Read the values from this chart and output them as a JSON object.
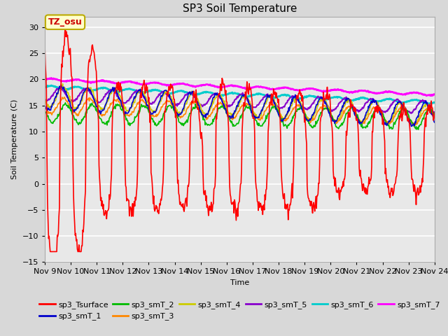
{
  "title": "SP3 Soil Temperature",
  "xlabel": "Time",
  "ylabel": "Soil Temperature (C)",
  "ylim": [
    -15,
    32
  ],
  "xlim": [
    0,
    360
  ],
  "x_tick_labels": [
    "Nov 9",
    "Nov 10",
    "Nov 11",
    "Nov 12",
    "Nov 13",
    "Nov 14",
    "Nov 15",
    "Nov 16",
    "Nov 17",
    "Nov 18",
    "Nov 19",
    "Nov 20",
    "Nov 21",
    "Nov 22",
    "Nov 23",
    "Nov 24"
  ],
  "annotation_text": "TZ_osu",
  "series": {
    "sp3_Tsurface": {
      "color": "#ff0000",
      "lw": 1.2
    },
    "sp3_smT_1": {
      "color": "#0000cc",
      "lw": 1.2
    },
    "sp3_smT_2": {
      "color": "#00bb00",
      "lw": 1.2
    },
    "sp3_smT_3": {
      "color": "#ff8800",
      "lw": 1.2
    },
    "sp3_smT_4": {
      "color": "#cccc00",
      "lw": 1.2
    },
    "sp3_smT_5": {
      "color": "#8800cc",
      "lw": 1.5
    },
    "sp3_smT_6": {
      "color": "#00cccc",
      "lw": 2.0
    },
    "sp3_smT_7": {
      "color": "#ff00ff",
      "lw": 2.0
    }
  }
}
